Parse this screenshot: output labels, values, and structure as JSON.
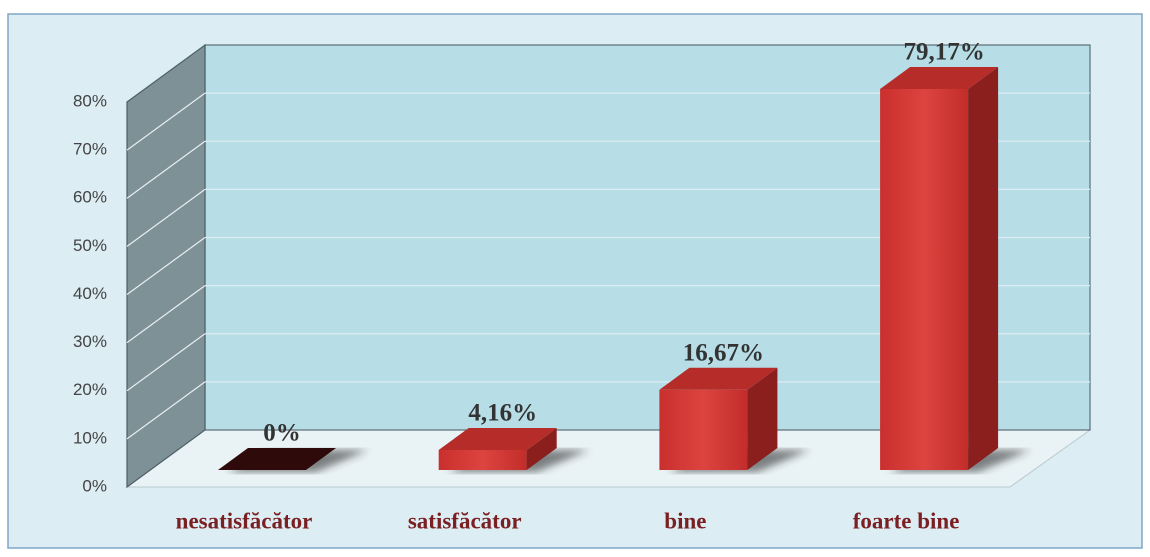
{
  "chart_data": {
    "type": "bar3d",
    "categories": [
      "nesatisfăcător",
      "satisfăcător",
      "bine",
      "foarte bine"
    ],
    "values": [
      0,
      4.16,
      16.67,
      79.17
    ],
    "value_labels": [
      "0%",
      "4,16%",
      "16,67%",
      "79,17%"
    ],
    "color": "#cf3a36",
    "ylim": [
      0,
      80
    ],
    "yticks": [
      {
        "value": 0,
        "label": "0%"
      },
      {
        "value": 10,
        "label": "10%"
      },
      {
        "value": 20,
        "label": "20%"
      },
      {
        "value": 30,
        "label": "30%"
      },
      {
        "value": 40,
        "label": "40%"
      },
      {
        "value": 50,
        "label": "50%"
      },
      {
        "value": 60,
        "label": "60%"
      },
      {
        "value": 70,
        "label": "70%"
      },
      {
        "value": 80,
        "label": "80%"
      }
    ],
    "grid": true
  }
}
